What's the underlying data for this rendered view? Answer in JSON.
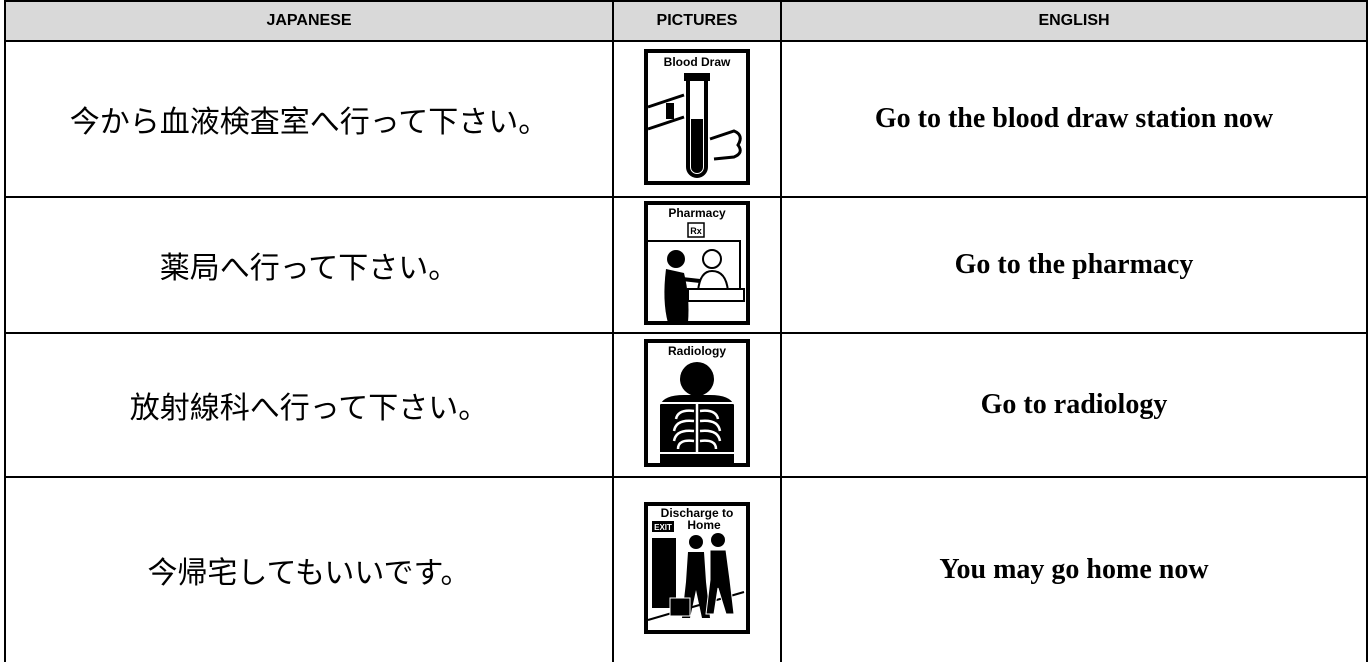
{
  "table": {
    "headers": [
      "JAPANESE",
      "PICTURES",
      "ENGLISH"
    ],
    "rows": [
      {
        "japanese": "今から血液検査室へ行って下さい。",
        "picture_label": [
          "Blood Draw"
        ],
        "english": "Go to the blood draw station now"
      },
      {
        "japanese": "薬局へ行って下さい。",
        "picture_label": [
          "Pharmacy"
        ],
        "picture_sign": "Rx",
        "english": "Go to the pharmacy"
      },
      {
        "japanese": "放射線科へ行って下さい。",
        "picture_label": [
          "Radiology"
        ],
        "english": "Go to radiology"
      },
      {
        "japanese": "今帰宅してもいいです。",
        "picture_label": [
          "Discharge to",
          "Home"
        ],
        "picture_sign": "EXIT",
        "english": "You may go home now"
      }
    ]
  }
}
